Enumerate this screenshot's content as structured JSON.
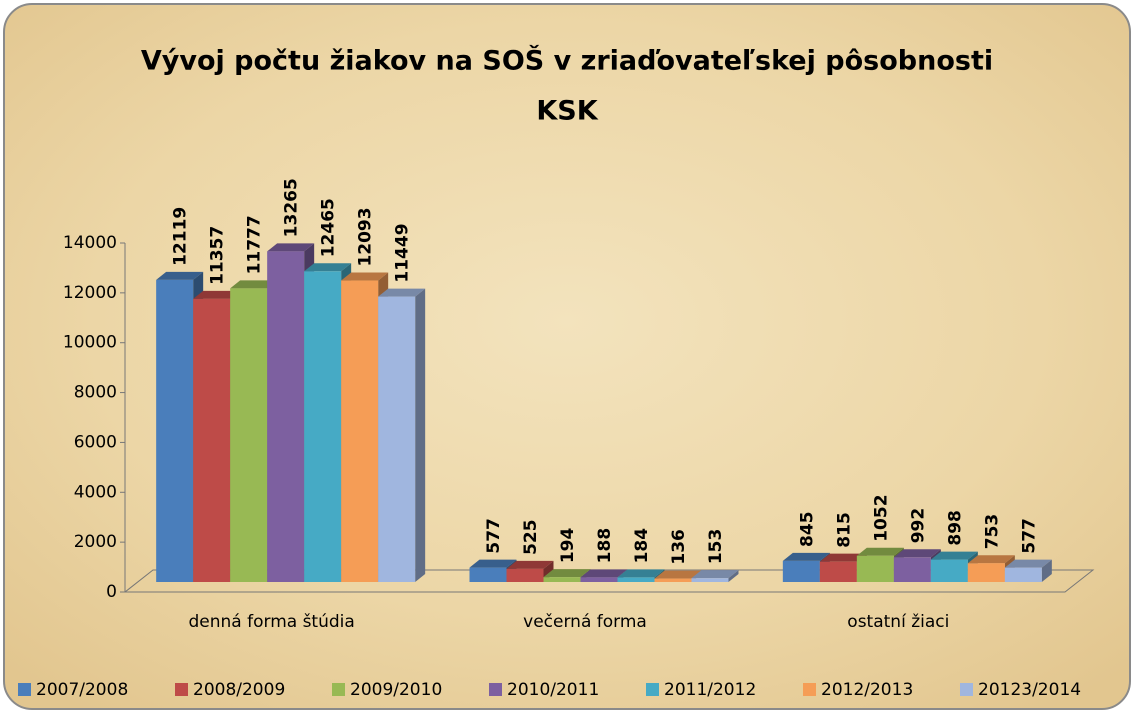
{
  "chart_data": {
    "type": "bar3d",
    "title": [
      "Vývoj počtu žiakov na SOŠ v zriaďovateľskej pôsobnosti",
      "KSK"
    ],
    "categories": [
      "denná forma štúdia",
      "večerná forma",
      "ostatní žiaci"
    ],
    "series": [
      {
        "name": "2007/2008",
        "color": "#4a7ebb",
        "values": [
          12119,
          577,
          845
        ]
      },
      {
        "name": "2008/2009",
        "color": "#be4b48",
        "values": [
          11357,
          525,
          815
        ]
      },
      {
        "name": "2009/2010",
        "color": "#98b954",
        "values": [
          11777,
          194,
          1052
        ]
      },
      {
        "name": "2010/2011",
        "color": "#7d60a0",
        "values": [
          13265,
          188,
          992
        ]
      },
      {
        "name": "2011/2012",
        "color": "#46aac5",
        "values": [
          12465,
          184,
          898
        ]
      },
      {
        "name": "2012/2013",
        "color": "#f59d56",
        "values": [
          12093,
          136,
          753
        ]
      },
      {
        "name": "20123/2014",
        "color": "#a0b6df",
        "values": [
          11449,
          153,
          577
        ]
      }
    ],
    "ylim": [
      0,
      14000
    ],
    "yticks": [
      0,
      2000,
      4000,
      6000,
      8000,
      10000,
      12000,
      14000
    ],
    "grid": false,
    "legend": "bottom"
  }
}
